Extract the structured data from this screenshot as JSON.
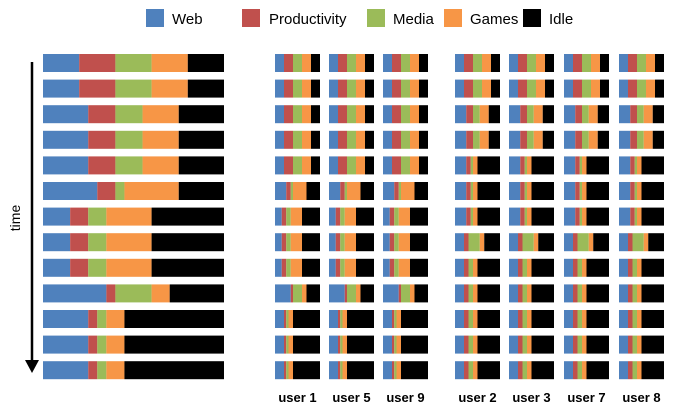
{
  "chart_data": {
    "type": "bar",
    "orientation": "horizontal",
    "stacked": true,
    "normalized": true,
    "categories": [
      "Web",
      "Productivity",
      "Media",
      "Games",
      "Idle"
    ],
    "colors": {
      "Web": "#4F81BD",
      "Productivity": "#C0504D",
      "Media": "#9BBB59",
      "Games": "#F79646",
      "Idle": "#000000"
    },
    "legend_position": "top",
    "time_axis_label": "time",
    "aggregate": {
      "rows": [
        [
          20,
          20,
          20,
          20,
          20
        ],
        [
          20,
          20,
          20,
          20,
          20
        ],
        [
          25,
          15,
          15,
          20,
          25
        ],
        [
          25,
          15,
          15,
          20,
          25
        ],
        [
          25,
          15,
          15,
          20,
          25
        ],
        [
          30,
          10,
          5,
          30,
          25
        ],
        [
          15,
          10,
          10,
          25,
          40
        ],
        [
          15,
          10,
          10,
          25,
          40
        ],
        [
          15,
          10,
          10,
          25,
          40
        ],
        [
          35,
          5,
          20,
          10,
          30
        ],
        [
          25,
          5,
          5,
          10,
          55
        ],
        [
          25,
          5,
          5,
          10,
          55
        ],
        [
          25,
          5,
          5,
          10,
          55
        ]
      ]
    },
    "groups": [
      {
        "users": [
          {
            "name": "user 1",
            "rows": [
              [
                20,
                20,
                20,
                20,
                20
              ],
              [
                20,
                20,
                20,
                20,
                20
              ],
              [
                20,
                20,
                20,
                20,
                20
              ],
              [
                20,
                20,
                20,
                20,
                20
              ],
              [
                20,
                20,
                20,
                20,
                20
              ],
              [
                25,
                10,
                5,
                30,
                30
              ],
              [
                15,
                10,
                10,
                25,
                40
              ],
              [
                15,
                10,
                10,
                25,
                40
              ],
              [
                15,
                10,
                10,
                25,
                40
              ],
              [
                35,
                5,
                20,
                10,
                30
              ],
              [
                20,
                5,
                5,
                10,
                60
              ],
              [
                20,
                5,
                5,
                10,
                60
              ],
              [
                20,
                5,
                5,
                10,
                60
              ]
            ]
          },
          {
            "name": "user 5",
            "rows": [
              [
                20,
                20,
                20,
                20,
                20
              ],
              [
                20,
                20,
                20,
                20,
                20
              ],
              [
                20,
                20,
                20,
                20,
                20
              ],
              [
                20,
                20,
                20,
                20,
                20
              ],
              [
                20,
                20,
                20,
                20,
                20
              ],
              [
                25,
                10,
                5,
                30,
                30
              ],
              [
                15,
                10,
                10,
                25,
                40
              ],
              [
                15,
                10,
                10,
                25,
                40
              ],
              [
                15,
                10,
                10,
                25,
                40
              ],
              [
                35,
                5,
                20,
                10,
                30
              ],
              [
                20,
                5,
                5,
                10,
                60
              ],
              [
                20,
                5,
                5,
                10,
                60
              ],
              [
                20,
                5,
                5,
                10,
                60
              ]
            ]
          },
          {
            "name": "user 9",
            "rows": [
              [
                20,
                20,
                20,
                20,
                20
              ],
              [
                20,
                20,
                20,
                20,
                20
              ],
              [
                20,
                20,
                20,
                20,
                20
              ],
              [
                20,
                20,
                20,
                20,
                20
              ],
              [
                20,
                20,
                20,
                20,
                20
              ],
              [
                25,
                10,
                5,
                30,
                30
              ],
              [
                15,
                10,
                10,
                25,
                40
              ],
              [
                15,
                10,
                10,
                25,
                40
              ],
              [
                15,
                10,
                10,
                25,
                40
              ],
              [
                35,
                5,
                20,
                10,
                30
              ],
              [
                20,
                5,
                5,
                10,
                60
              ],
              [
                20,
                5,
                5,
                10,
                60
              ],
              [
                20,
                5,
                5,
                10,
                60
              ]
            ]
          }
        ]
      },
      {
        "users": [
          {
            "name": "user 2",
            "rows": [
              [
                20,
                20,
                20,
                20,
                20
              ],
              [
                20,
                20,
                20,
                20,
                20
              ],
              [
                25,
                15,
                15,
                20,
                25
              ],
              [
                25,
                15,
                15,
                20,
                25
              ],
              [
                25,
                10,
                5,
                10,
                50
              ],
              [
                25,
                10,
                5,
                10,
                50
              ],
              [
                25,
                10,
                5,
                10,
                50
              ],
              [
                20,
                10,
                25,
                10,
                35
              ],
              [
                20,
                10,
                10,
                10,
                50
              ],
              [
                20,
                10,
                10,
                10,
                50
              ],
              [
                20,
                10,
                10,
                10,
                50
              ],
              [
                20,
                10,
                10,
                10,
                50
              ],
              [
                20,
                10,
                10,
                10,
                50
              ]
            ]
          },
          {
            "name": "user 3",
            "rows": [
              [
                20,
                20,
                20,
                20,
                20
              ],
              [
                20,
                20,
                20,
                20,
                20
              ],
              [
                25,
                15,
                15,
                20,
                25
              ],
              [
                25,
                15,
                15,
                20,
                25
              ],
              [
                25,
                10,
                5,
                10,
                50
              ],
              [
                25,
                10,
                5,
                10,
                50
              ],
              [
                25,
                10,
                5,
                10,
                50
              ],
              [
                20,
                10,
                25,
                10,
                35
              ],
              [
                20,
                10,
                10,
                10,
                50
              ],
              [
                20,
                10,
                10,
                10,
                50
              ],
              [
                20,
                10,
                10,
                10,
                50
              ],
              [
                20,
                10,
                10,
                10,
                50
              ],
              [
                20,
                10,
                10,
                10,
                50
              ]
            ]
          },
          {
            "name": "user 7",
            "rows": [
              [
                20,
                20,
                20,
                20,
                20
              ],
              [
                20,
                20,
                20,
                20,
                20
              ],
              [
                25,
                15,
                15,
                20,
                25
              ],
              [
                25,
                15,
                15,
                20,
                25
              ],
              [
                25,
                10,
                5,
                10,
                50
              ],
              [
                25,
                10,
                5,
                10,
                50
              ],
              [
                25,
                10,
                5,
                10,
                50
              ],
              [
                20,
                10,
                25,
                10,
                35
              ],
              [
                20,
                10,
                10,
                10,
                50
              ],
              [
                20,
                10,
                10,
                10,
                50
              ],
              [
                20,
                10,
                10,
                10,
                50
              ],
              [
                20,
                10,
                10,
                10,
                50
              ],
              [
                20,
                10,
                10,
                10,
                50
              ]
            ]
          },
          {
            "name": "user 8",
            "rows": [
              [
                20,
                20,
                20,
                20,
                20
              ],
              [
                20,
                20,
                20,
                20,
                20
              ],
              [
                25,
                15,
                15,
                20,
                25
              ],
              [
                25,
                15,
                15,
                20,
                25
              ],
              [
                25,
                10,
                5,
                10,
                50
              ],
              [
                25,
                10,
                5,
                10,
                50
              ],
              [
                25,
                10,
                5,
                10,
                50
              ],
              [
                20,
                10,
                25,
                10,
                35
              ],
              [
                20,
                10,
                10,
                10,
                50
              ],
              [
                20,
                10,
                10,
                10,
                50
              ],
              [
                20,
                10,
                10,
                10,
                50
              ],
              [
                20,
                10,
                10,
                10,
                50
              ],
              [
                20,
                10,
                10,
                10,
                50
              ]
            ]
          }
        ]
      }
    ]
  }
}
